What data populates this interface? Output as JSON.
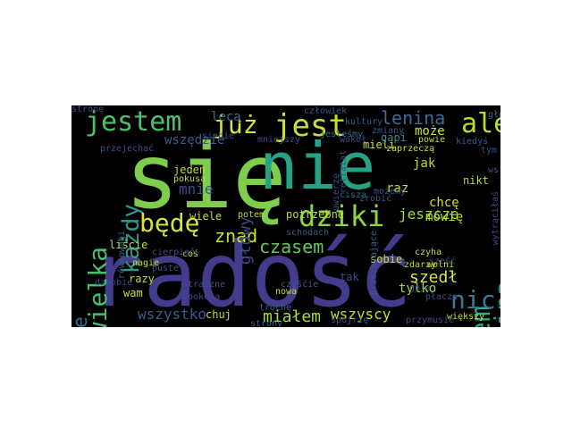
{
  "word_cloud": {
    "words": [
      {
        "text": "się",
        "color": "#7fcd4c"
      },
      {
        "text": "nie",
        "color": "#26a386"
      },
      {
        "text": "radość",
        "color": "#433b8b"
      },
      {
        "text": "jestem",
        "color": "#4ec26a"
      },
      {
        "text": "już",
        "color": "#d9e23a"
      },
      {
        "text": "jest",
        "color": "#c8df31"
      },
      {
        "text": "lenina",
        "color": "#3f6a96"
      },
      {
        "text": "ale",
        "color": "#b4dd2f"
      },
      {
        "text": "każdy",
        "color": "#2d9a8a"
      },
      {
        "text": "wielka",
        "color": "#47c06e"
      },
      {
        "text": "będę",
        "color": "#d5e33c"
      },
      {
        "text": "dziki",
        "color": "#8fd647"
      },
      {
        "text": "pianina",
        "color": "#3c8b8e"
      },
      {
        "text": "byłem",
        "color": "#2fa889"
      },
      {
        "text": "nic",
        "color": "#3a7c8f"
      },
      {
        "text": "ciebie",
        "color": "#2e6d8e"
      },
      {
        "text": "czasem",
        "color": "#61c95a"
      },
      {
        "text": "znad",
        "color": "#c7e029"
      },
      {
        "text": "wszystko",
        "color": "#3b5c8a"
      },
      {
        "text": "miałem",
        "color": "#a9db33"
      },
      {
        "text": "wszyscy",
        "color": "#c6df2e"
      },
      {
        "text": "szedł",
        "color": "#d9e43b"
      },
      {
        "text": "jeszcze",
        "color": "#a6da37"
      },
      {
        "text": "potrzebne",
        "color": "#b8de2c"
      },
      {
        "text": "głowy",
        "color": "#3e4a89"
      },
      {
        "text": "mnie",
        "color": "#3d4f8a"
      },
      {
        "text": "wszędzie",
        "color": "#3c5a8a"
      },
      {
        "text": "lecą",
        "color": "#3a6c8e"
      },
      {
        "text": "może",
        "color": "#d3e22e"
      },
      {
        "text": "mieli",
        "color": "#c9e02e"
      },
      {
        "text": "gapi",
        "color": "#3b8a8c"
      },
      {
        "text": "jesteśmy",
        "color": "#336e8e"
      },
      {
        "text": "mniejszy",
        "color": "#3f4889"
      },
      {
        "text": "jak",
        "color": "#b7de30"
      },
      {
        "text": "raz",
        "color": "#bfe02f"
      },
      {
        "text": "chcę",
        "color": "#d2e22d"
      },
      {
        "text": "mówię",
        "color": "#bcde30"
      },
      {
        "text": "tylko",
        "color": "#a3d93a"
      },
      {
        "text": "sobie",
        "color": "#c2df2c"
      },
      {
        "text": "większy",
        "color": "#c6df30"
      },
      {
        "text": "liście",
        "color": "#b8de2f"
      },
      {
        "text": "nagie",
        "color": "#c0df2e"
      },
      {
        "text": "razy",
        "color": "#bfdf2f"
      },
      {
        "text": "wam",
        "color": "#c9e030"
      },
      {
        "text": "wiele",
        "color": "#c6df2e"
      },
      {
        "text": "potem",
        "color": "#bdde2f"
      },
      {
        "text": "jeden",
        "color": "#bade30"
      },
      {
        "text": "pokusa",
        "color": "#c0df2f"
      },
      {
        "text": "chuj",
        "color": "#c6df30"
      },
      {
        "text": "strony",
        "color": "#33668d"
      },
      {
        "text": "trochę",
        "color": "#3b5a8a"
      },
      {
        "text": "równowagi",
        "color": "#35608d"
      },
      {
        "text": "przymusie",
        "color": "#3e4a89"
      },
      {
        "text": "cisza",
        "color": "#2f708e"
      },
      {
        "text": "tak",
        "color": "#3f4889"
      },
      {
        "text": "nikt",
        "color": "#b7de30"
      },
      {
        "text": "tym",
        "color": "#3d4e8a"
      },
      {
        "text": "wstać",
        "color": "#3c508b"
      },
      {
        "text": "kiedyś",
        "color": "#39568c"
      },
      {
        "text": "powie",
        "color": "#c4df2f"
      },
      {
        "text": "głosie",
        "color": "#3c6b8e"
      },
      {
        "text": "straszne",
        "color": "#3a4f8b"
      },
      {
        "text": "dookoła",
        "color": "#3c4c8a"
      },
      {
        "text": "coś",
        "color": "#c0df2f"
      },
      {
        "text": "schodach",
        "color": "#3a5b8c"
      },
      {
        "text": "spojrzę",
        "color": "#3b548b"
      },
      {
        "text": "zdarzy",
        "color": "#b8de2f"
      },
      {
        "text": "czyha",
        "color": "#c3df2e"
      },
      {
        "text": "uwierzę",
        "color": "#3d4c8a"
      },
      {
        "text": "wytrąciłaś",
        "color": "#3e4a89"
      },
      {
        "text": "przerażające",
        "color": "#3a5a8c"
      },
      {
        "text": "retratat",
        "color": "#3d4a89"
      },
      {
        "text": "zmiany",
        "color": "#3c508b"
      },
      {
        "text": "kultury",
        "color": "#3c588b"
      },
      {
        "text": "wokół",
        "color": "#3d4d8a"
      },
      {
        "text": "zrobić",
        "color": "#3b538b"
      },
      {
        "text": "czyśćie",
        "color": "#3a5c8c"
      },
      {
        "text": "nowa",
        "color": "#c0df2f"
      },
      {
        "text": "sześć",
        "color": "#3e4a89"
      },
      {
        "text": "wolni",
        "color": "#c4df2f"
      },
      {
        "text": "gola",
        "color": "#3c4f8a"
      },
      {
        "text": "płacze",
        "color": "#3d4e8a"
      },
      {
        "text": "puste",
        "color": "#3c528b"
      },
      {
        "text": "cierpień",
        "color": "#3c508b"
      },
      {
        "text": "dziobie",
        "color": "#3d4d8a"
      },
      {
        "text": "przejechać",
        "color": "#3c508b"
      },
      {
        "text": "człowiek",
        "color": "#3c558b"
      },
      {
        "text": "możemy",
        "color": "#3b588c"
      },
      {
        "text": "zaprzeczą",
        "color": "#c6df2e"
      },
      {
        "text": "siebie",
        "color": "#3c4e8a"
      },
      {
        "text": "stronę",
        "color": "#3c508b"
      }
    ]
  }
}
